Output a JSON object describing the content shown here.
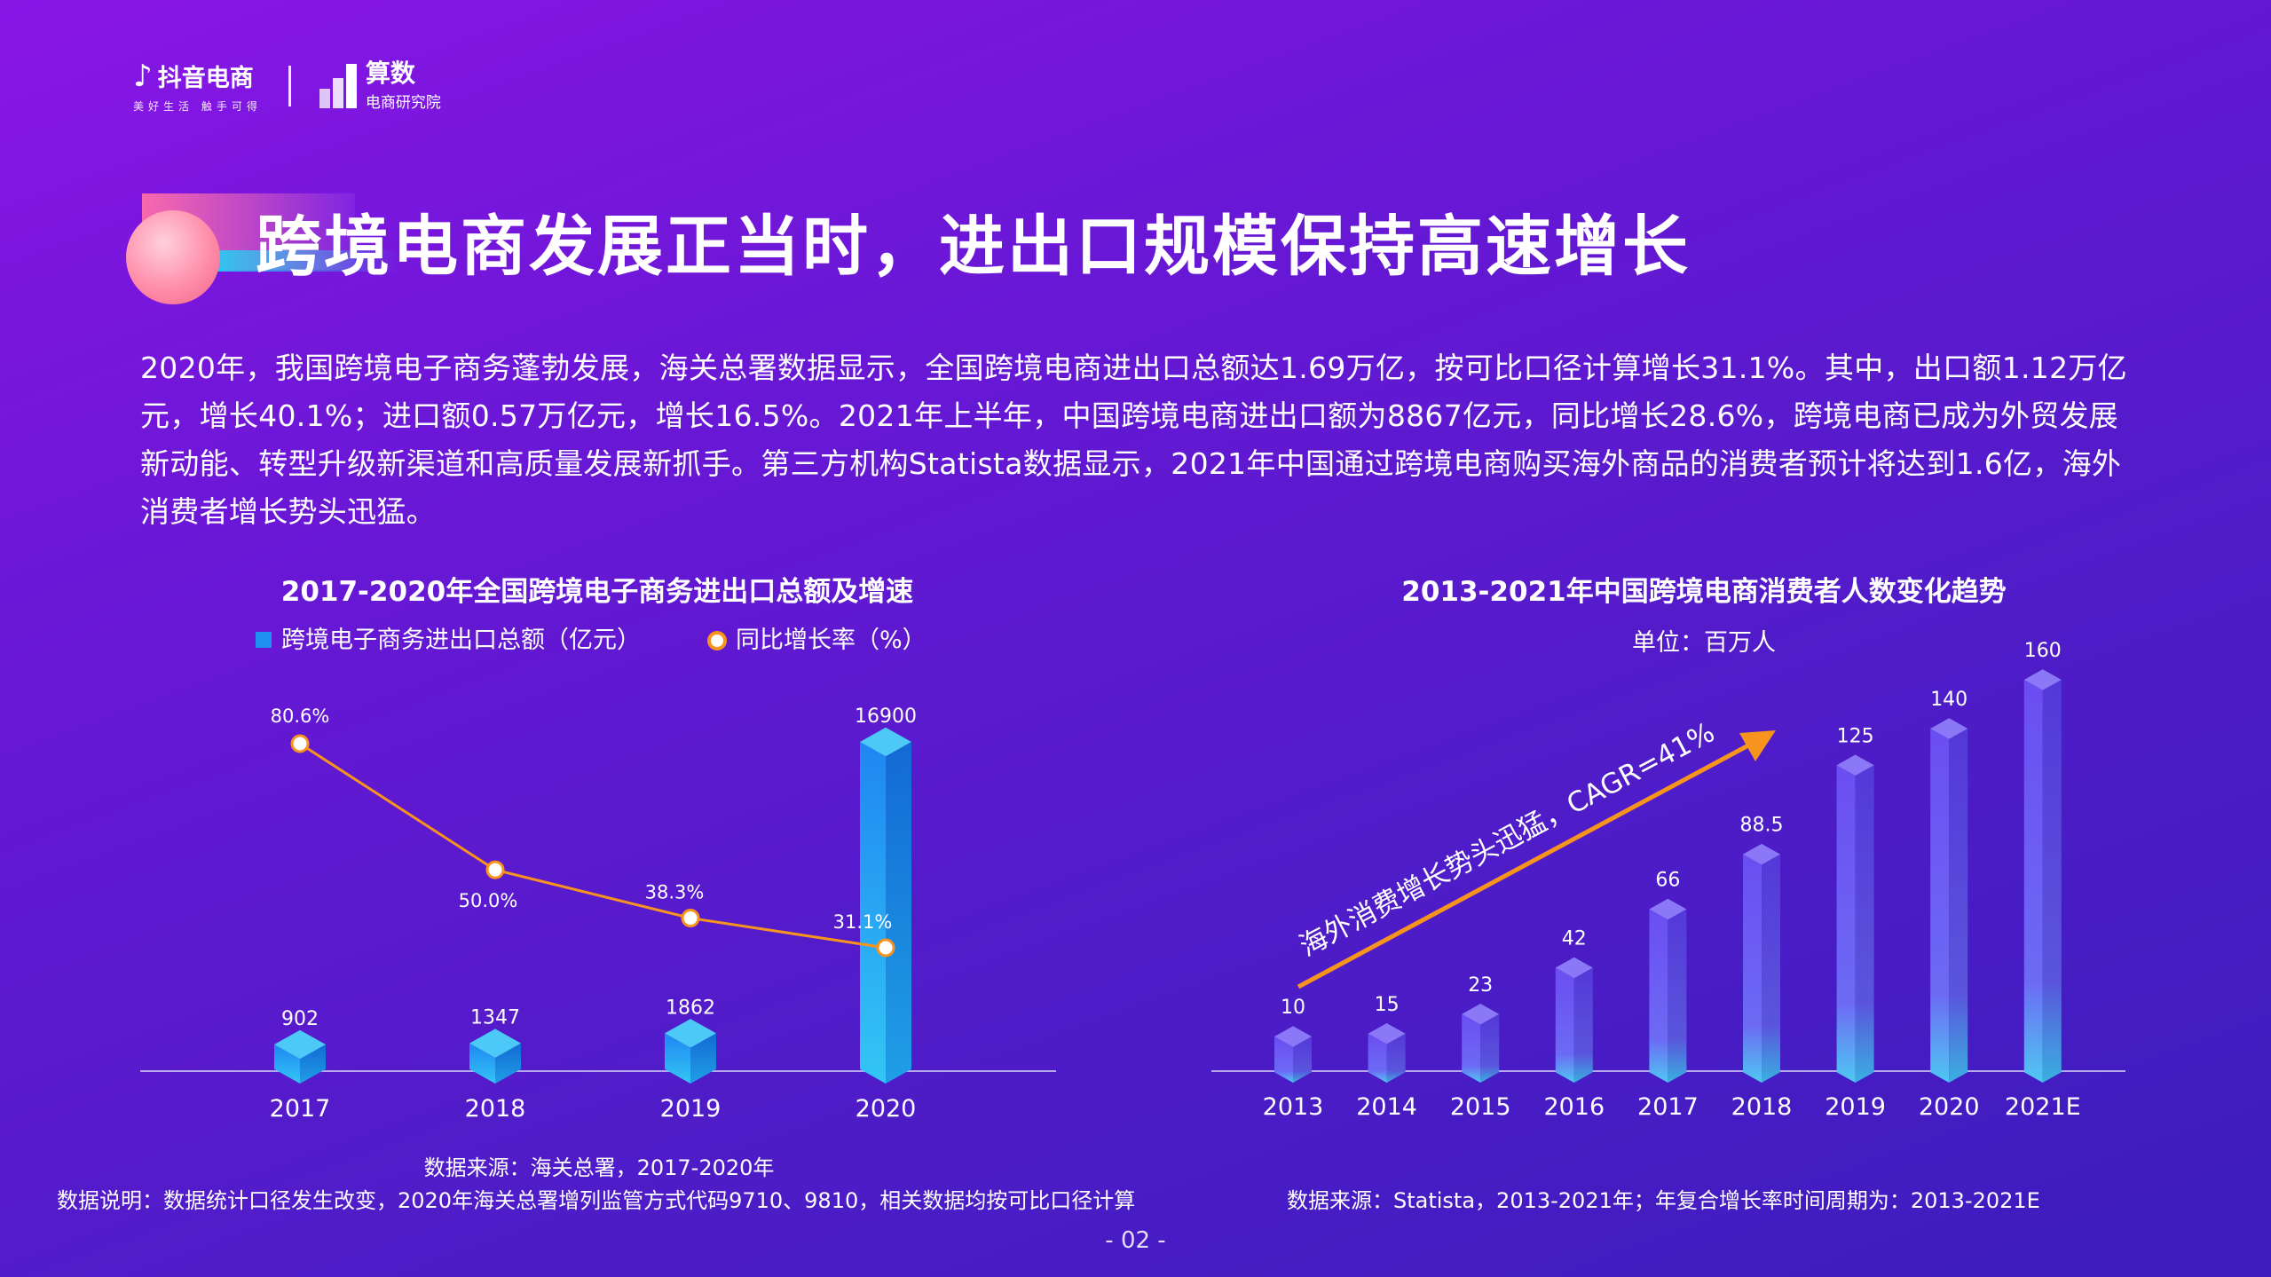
{
  "brand": {
    "douyin_name": "抖音电商",
    "douyin_slogan": "美好生活 触手可得",
    "suanshu_name": "算数",
    "suanshu_sub": "电商研究院"
  },
  "title": "跨境电商发展正当时，进出口规模保持高速增长",
  "intro": "2020年，我国跨境电子商务蓬勃发展，海关总署数据显示，全国跨境电商进出口总额达1.69万亿，按可比口径计算增长31.1%。其中，出口额1.12万亿元，增长40.1%；进口额0.57万亿元，增长16.5%。2021年上半年，中国跨境电商进出口额为8867亿元，同比增长28.6%，跨境电商已成为外贸发展新动能、转型升级新渠道和高质量发展新抓手。第三方机构Statista数据显示，2021年中国通过跨境电商购买海外商品的消费者预计将达到1.6亿，海外消费者增长势头迅猛。",
  "chart_data": [
    {
      "type": "bar",
      "title": "2017-2020年全国跨境电子商务进出口总额及增速",
      "categories": [
        "2017",
        "2018",
        "2019",
        "2020"
      ],
      "series": [
        {
          "name": "跨境电子商务进出口总额（亿元）",
          "type": "bar",
          "values": [
            902,
            1347,
            1862,
            16900
          ],
          "labels": [
            "902",
            "1347",
            "1862",
            "16900"
          ]
        },
        {
          "name": "同比增长率（%）",
          "type": "line",
          "values": [
            80.6,
            50.0,
            38.3,
            31.1
          ],
          "labels": [
            "80.6%",
            "50.0%",
            "38.3%",
            "31.1%"
          ]
        }
      ],
      "colors": {
        "bar": "#1e90f0",
        "line": "#f7941e"
      },
      "legend_position": "top"
    },
    {
      "type": "bar",
      "title": "2013-2021年中国跨境电商消费者人数变化趋势",
      "subtitle": "单位：百万人",
      "categories": [
        "2013",
        "2014",
        "2015",
        "2016",
        "2017",
        "2018",
        "2019",
        "2020",
        "2021E"
      ],
      "values": [
        10,
        15,
        23,
        42,
        66,
        88.5,
        125,
        140,
        160
      ],
      "value_labels": [
        "10",
        "15",
        "23",
        "42",
        "66",
        "88.5",
        "125",
        "140",
        "160"
      ],
      "annotation": "海外消费增长势头迅猛，CAGR=41%",
      "colors": {
        "bar": "#6a55f2",
        "arrow": "#f7941e"
      }
    }
  ],
  "footer": {
    "left_source": "数据来源：海关总署，2017-2020年",
    "left_note": "数据说明：数据统计口径发生改变，2020年海关总署增列监管方式代码9710、9810，相关数据均按可比口径计算",
    "right_source": "数据来源：Statista，2013-2021年；年复合增长率时间周期为：2013-2021E",
    "page_num": "- 02 -"
  }
}
